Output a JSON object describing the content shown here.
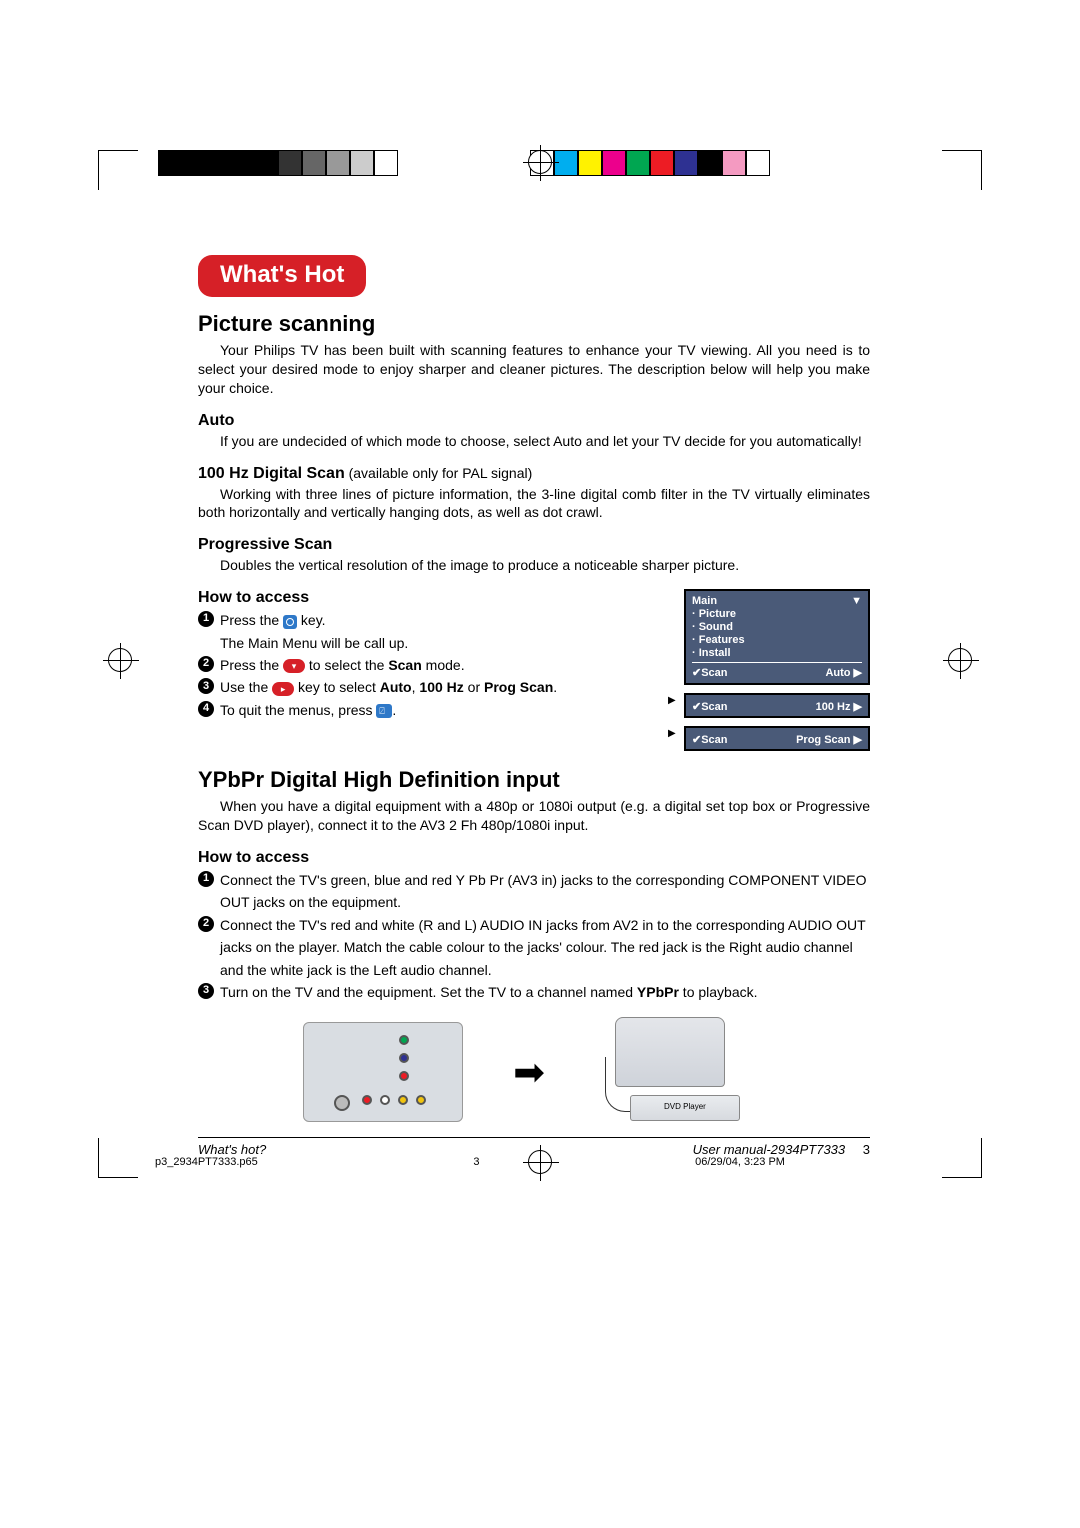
{
  "printer": {
    "left_swatches": [
      "#000000",
      "#000000",
      "#000000",
      "#000000",
      "#000000",
      "#333333",
      "#666666",
      "#999999",
      "#cccccc",
      "#ffffff"
    ],
    "right_swatches": [
      "#ffffff",
      "#00aeef",
      "#fff200",
      "#ec008c",
      "#00a651",
      "#ed1c24",
      "#2e3192",
      "#000000",
      "#f49ac1",
      "#ffffff"
    ],
    "job_file": "p3_2934PT7333.p65",
    "job_page": "3",
    "job_date": "06/29/04, 3:23 PM"
  },
  "badge": "What's Hot",
  "picture_scanning": {
    "title": "Picture scanning",
    "intro": "Your Philips TV has been built with scanning features to enhance your TV viewing. All you need is to select your desired mode to enjoy sharper and cleaner pictures. The description below will help you make your choice.",
    "auto_h": "Auto",
    "auto_p": "If you are undecided of which mode to choose, select Auto and let your TV decide for you automatically!",
    "hz_h": "100 Hz Digital Scan",
    "hz_note": " (available only for PAL signal)",
    "hz_p": "Working with three lines of picture information, the 3-line digital comb filter in the TV virtually eliminates both horizontally and vertically hanging dots, as well as dot crawl.",
    "ps_h": "Progressive Scan",
    "ps_p": "Doubles the vertical resolution of the image to produce a noticeable sharper picture.",
    "how_h": "How to access",
    "steps": {
      "s1a": "Press the ",
      "s1b": " key.",
      "s1c": "The Main Menu will be call up.",
      "s2a": "Press the ",
      "s2b": " to select the ",
      "s2_scan": "Scan",
      "s2c": " mode.",
      "s3a": "Use the ",
      "s3b": " key to select ",
      "s3_auto": "Auto",
      "s3_comma": ", ",
      "s3_hz": "100 Hz",
      "s3_or": " or ",
      "s3_prog": "Prog Scan",
      "s3c": ".",
      "s4a": "To quit the menus, press ",
      "s4b": "."
    },
    "key_down_glyph": "▾",
    "key_right_glyph": "▸",
    "key_colors": {
      "menu": "#2e78c8",
      "right": "#d62027",
      "down": "#d62027",
      "tv": "#2e78c8"
    }
  },
  "osd": {
    "main_head": "Main",
    "main_arrow": "▼",
    "items": [
      "· Picture",
      "· Sound",
      "· Features",
      "· Install"
    ],
    "sel_l": "✔Scan",
    "sel_r_1": "Auto  ▶",
    "sel_r_2": "100 Hz  ▶",
    "sel_r_3": "Prog Scan  ▶",
    "bg": "#4a5a78",
    "fg": "#ffffff",
    "border": "#000000"
  },
  "ypbpr": {
    "title": "YPbPr Digital High Definition input",
    "intro": "When you have a digital equipment with a 480p or 1080i output (e.g. a digital set top box or Progressive Scan DVD player), connect it to the AV3 2 Fh 480p/1080i input.",
    "how_h": "How to access",
    "s1": "Connect the TV's green, blue and red  Y Pb Pr (AV3 in) jacks to the corresponding COMPONENT VIDEO OUT jacks on the equipment.",
    "s2": "Connect the TV's red and white (R and L) AUDIO IN jacks from AV2 in to the corresponding  AUDIO OUT jacks on the player. Match the cable colour to the jacks' colour. The red jack is the Right audio channel and the white jack is the Left audio channel.",
    "s3a": "Turn on the TV and the equipment.  Set the TV to a channel named ",
    "s3_bold": "YPbPr",
    "s3b": " to playback.",
    "dvd_label": "DVD Player",
    "jacks": {
      "y": "#00a651",
      "pb": "#2e3192",
      "pr": "#ed1c24",
      "aud_r": "#ed1c24",
      "aud_l": "#ffffff"
    }
  },
  "footer": {
    "left": "What's hot?",
    "right": "User manual-2934PT7333",
    "page": "3"
  }
}
